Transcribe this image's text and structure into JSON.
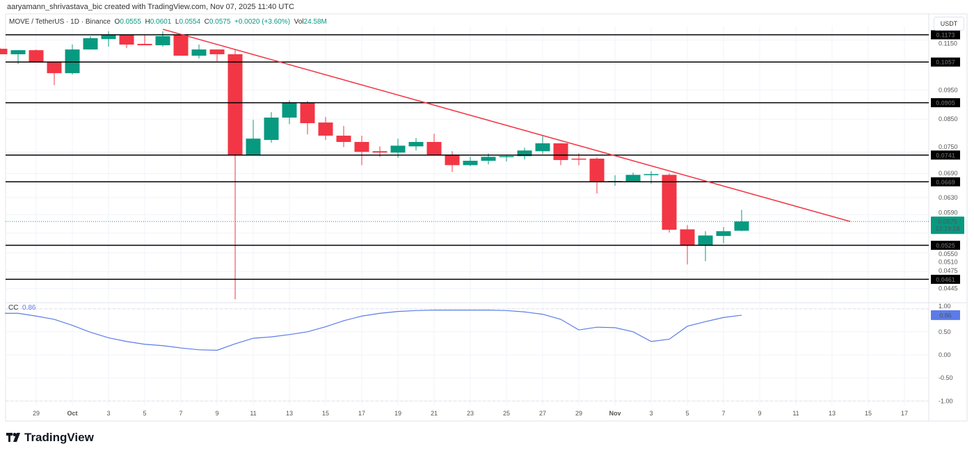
{
  "header": "aaryamann_shrivastava_bic created with TradingView.com, Nov 07, 2025 11:40 UTC",
  "legend": {
    "symbol": "MOVE / TetherUS · 1D · Binance",
    "open_label": "O",
    "open": "0.0555",
    "high_label": "H",
    "high": "0.0601",
    "low_label": "L",
    "low": "0.0554",
    "close_label": "C",
    "close": "0.0575",
    "change": "+0.0020 (+3.60%)",
    "vol_label": "Vol",
    "vol": "24.58M"
  },
  "currency_button": "USDT",
  "brand": "TradingView",
  "colors": {
    "up": "#089981",
    "down": "#f23645",
    "trendline": "#f23645",
    "cc_line": "#5b7be8",
    "level_line": "#000000"
  },
  "chart_data": [
    {
      "type": "candlestick",
      "scale": "log",
      "ylim": [
        0.0425,
        0.1211
      ],
      "grid": true,
      "x_tick_labels": [
        "29",
        "Oct",
        "3",
        "5",
        "7",
        "9",
        "11",
        "13",
        "15",
        "17",
        "19",
        "21",
        "23",
        "25",
        "27",
        "29",
        "Nov",
        "3",
        "5",
        "7",
        "9",
        "11",
        "13",
        "15",
        "17"
      ],
      "y_tick_labels": [
        "0.1150",
        "0.0950",
        "0.0850",
        "0.0750",
        "0.0690",
        "0.0630",
        "0.0590",
        "0.0550",
        "0.0510",
        "0.0475",
        "0.0445"
      ],
      "candles": [
        {
          "date": "2025-09-27",
          "o": 0.1112,
          "h": 0.1115,
          "l": 0.1089,
          "c": 0.1089
        },
        {
          "date": "2025-09-28",
          "o": 0.1089,
          "h": 0.1106,
          "l": 0.1049,
          "c": 0.1106
        },
        {
          "date": "2025-09-29",
          "o": 0.1106,
          "h": 0.1109,
          "l": 0.1057,
          "c": 0.1057
        },
        {
          "date": "2025-09-30",
          "o": 0.1057,
          "h": 0.1057,
          "l": 0.0968,
          "c": 0.1013
        },
        {
          "date": "2025-10-01",
          "o": 0.1013,
          "h": 0.113,
          "l": 0.1008,
          "c": 0.1109
        },
        {
          "date": "2025-10-02",
          "o": 0.1109,
          "h": 0.1167,
          "l": 0.1109,
          "c": 0.1158
        },
        {
          "date": "2025-10-03",
          "o": 0.1154,
          "h": 0.1189,
          "l": 0.1121,
          "c": 0.1173
        },
        {
          "date": "2025-10-04",
          "o": 0.1173,
          "h": 0.1173,
          "l": 0.1115,
          "c": 0.113
        },
        {
          "date": "2025-10-05",
          "o": 0.1133,
          "h": 0.1173,
          "l": 0.1127,
          "c": 0.1127
        },
        {
          "date": "2025-10-06",
          "o": 0.1127,
          "h": 0.1189,
          "l": 0.1121,
          "c": 0.1167
        },
        {
          "date": "2025-10-07",
          "o": 0.1173,
          "h": 0.1173,
          "l": 0.1083,
          "c": 0.1083
        },
        {
          "date": "2025-10-08",
          "o": 0.1083,
          "h": 0.113,
          "l": 0.1072,
          "c": 0.1109
        },
        {
          "date": "2025-10-09",
          "o": 0.1109,
          "h": 0.1109,
          "l": 0.106,
          "c": 0.1089
        },
        {
          "date": "2025-10-10",
          "o": 0.1089,
          "h": 0.1109,
          "l": 0.0427,
          "c": 0.074
        },
        {
          "date": "2025-10-11",
          "o": 0.074,
          "h": 0.0848,
          "l": 0.074,
          "c": 0.0789
        },
        {
          "date": "2025-10-12",
          "o": 0.0785,
          "h": 0.0873,
          "l": 0.0777,
          "c": 0.0855
        },
        {
          "date": "2025-10-13",
          "o": 0.0855,
          "h": 0.0913,
          "l": 0.0834,
          "c": 0.0904
        },
        {
          "date": "2025-10-14",
          "o": 0.0904,
          "h": 0.0911,
          "l": 0.0802,
          "c": 0.0837
        },
        {
          "date": "2025-10-15",
          "o": 0.0839,
          "h": 0.0857,
          "l": 0.0785,
          "c": 0.0798
        },
        {
          "date": "2025-10-16",
          "o": 0.0798,
          "h": 0.0828,
          "l": 0.0764,
          "c": 0.0779
        },
        {
          "date": "2025-10-17",
          "o": 0.0779,
          "h": 0.0798,
          "l": 0.0713,
          "c": 0.075
        },
        {
          "date": "2025-10-18",
          "o": 0.0752,
          "h": 0.0766,
          "l": 0.0736,
          "c": 0.0748
        },
        {
          "date": "2025-10-19",
          "o": 0.0748,
          "h": 0.0789,
          "l": 0.0733,
          "c": 0.0768
        },
        {
          "date": "2025-10-20",
          "o": 0.0766,
          "h": 0.0791,
          "l": 0.0754,
          "c": 0.0779
        },
        {
          "date": "2025-10-21",
          "o": 0.0779,
          "h": 0.0804,
          "l": 0.074,
          "c": 0.074
        },
        {
          "date": "2025-10-22",
          "o": 0.0742,
          "h": 0.0752,
          "l": 0.0695,
          "c": 0.0713
        },
        {
          "date": "2025-10-23",
          "o": 0.0713,
          "h": 0.0736,
          "l": 0.071,
          "c": 0.0725
        },
        {
          "date": "2025-10-24",
          "o": 0.0725,
          "h": 0.0746,
          "l": 0.0715,
          "c": 0.0736
        },
        {
          "date": "2025-10-25",
          "o": 0.0736,
          "h": 0.0742,
          "l": 0.0723,
          "c": 0.0738
        },
        {
          "date": "2025-10-26",
          "o": 0.0738,
          "h": 0.0762,
          "l": 0.0729,
          "c": 0.0754
        },
        {
          "date": "2025-10-27",
          "o": 0.0752,
          "h": 0.08,
          "l": 0.0744,
          "c": 0.0775
        },
        {
          "date": "2025-10-28",
          "o": 0.0775,
          "h": 0.0775,
          "l": 0.0713,
          "c": 0.0727
        },
        {
          "date": "2025-10-29",
          "o": 0.0731,
          "h": 0.0746,
          "l": 0.0713,
          "c": 0.0729
        },
        {
          "date": "2025-10-30",
          "o": 0.0731,
          "h": 0.0734,
          "l": 0.064,
          "c": 0.0669
        },
        {
          "date": "2025-10-31",
          "o": 0.0669,
          "h": 0.0686,
          "l": 0.0659,
          "c": 0.0671
        },
        {
          "date": "2025-11-01",
          "o": 0.0669,
          "h": 0.0693,
          "l": 0.0669,
          "c": 0.0687
        },
        {
          "date": "2025-11-02",
          "o": 0.0687,
          "h": 0.0697,
          "l": 0.0664,
          "c": 0.0689
        },
        {
          "date": "2025-11-03",
          "o": 0.0687,
          "h": 0.0691,
          "l": 0.0551,
          "c": 0.0557
        },
        {
          "date": "2025-11-04",
          "o": 0.0558,
          "h": 0.0567,
          "l": 0.0488,
          "c": 0.0525
        },
        {
          "date": "2025-11-05",
          "o": 0.0525,
          "h": 0.0554,
          "l": 0.0494,
          "c": 0.0545
        },
        {
          "date": "2025-11-06",
          "o": 0.0544,
          "h": 0.0563,
          "l": 0.0529,
          "c": 0.0554
        },
        {
          "date": "2025-11-07",
          "o": 0.0555,
          "h": 0.0601,
          "l": 0.0554,
          "c": 0.0575
        }
      ],
      "horizontal_levels": [
        "0.1173",
        "0.1057",
        "0.0905",
        "0.0741",
        "0.0669",
        "0.0525",
        "0.0461"
      ],
      "trendline": {
        "from": {
          "date": "2025-10-06",
          "price": 0.1198
        },
        "to": {
          "date": "2025-11-13",
          "price": 0.0575
        }
      },
      "last_price": {
        "value": "0.0575",
        "countdown": "12:19:18"
      }
    },
    {
      "type": "line",
      "name": "CC",
      "current_value": "0.86",
      "ylim": [
        -1.1,
        1.1
      ],
      "y_tick_labels": [
        "1.00",
        "0.50",
        "0.00",
        "-0.50",
        "-1.00"
      ],
      "dashed_levels": [
        1,
        0,
        -1
      ],
      "values": [
        0.9,
        0.9,
        0.84,
        0.77,
        0.64,
        0.49,
        0.37,
        0.29,
        0.23,
        0.2,
        0.15,
        0.11,
        0.1,
        0.24,
        0.36,
        0.39,
        0.44,
        0.5,
        0.61,
        0.74,
        0.84,
        0.9,
        0.94,
        0.96,
        0.97,
        0.97,
        0.97,
        0.97,
        0.96,
        0.93,
        0.88,
        0.77,
        0.54,
        0.6,
        0.59,
        0.5,
        0.29,
        0.34,
        0.62,
        0.72,
        0.81,
        0.86
      ]
    }
  ]
}
